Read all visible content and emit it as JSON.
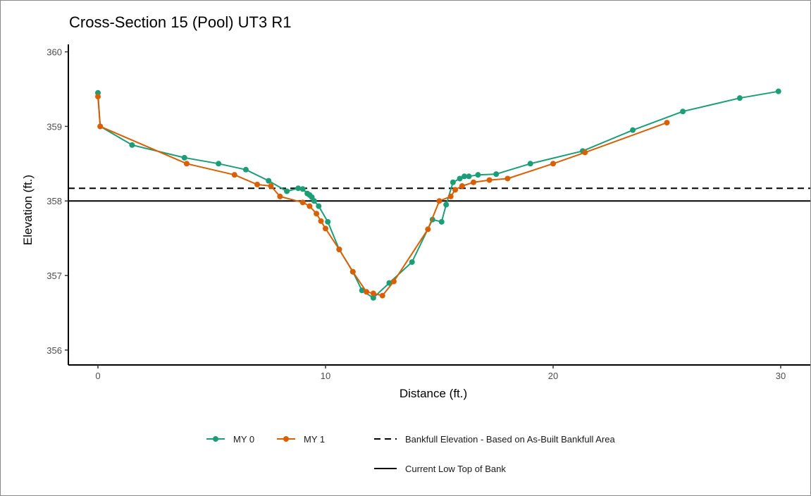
{
  "colors": {
    "my0": "#1b9e77",
    "my1": "#d95f02",
    "bankfull": "#000000",
    "low_top_of_bank": "#000000"
  },
  "chart_data": {
    "type": "line",
    "title": "Cross-Section 15 (Pool) UT3 R1",
    "xlabel": "Distance (ft.)",
    "ylabel": "Elevation (ft.)",
    "xlim": [
      -1.3,
      31.3
    ],
    "ylim": [
      355.8,
      360.1
    ],
    "x_ticks": [
      0,
      10,
      20,
      30
    ],
    "y_ticks": [
      356,
      357,
      358,
      359,
      360
    ],
    "grid": false,
    "legend_position": "bottom",
    "series": [
      {
        "name": "MY 0",
        "color": "#1b9e77",
        "x": [
          0,
          0.1,
          1.5,
          3.8,
          5.3,
          6.5,
          7.5,
          8.3,
          8.8,
          9.0,
          9.2,
          9.3,
          9.4,
          9.5,
          9.7,
          10.1,
          10.6,
          11.2,
          11.6,
          12.1,
          12.8,
          13.8,
          14.7,
          15.1,
          15.3,
          15.6,
          15.9,
          16.1,
          16.3,
          16.7,
          17.5,
          19.0,
          21.3,
          23.5,
          25.7,
          28.2,
          29.9
        ],
        "y": [
          359.45,
          359.0,
          358.75,
          358.58,
          358.5,
          358.42,
          358.27,
          358.13,
          358.17,
          358.16,
          358.1,
          358.08,
          358.05,
          358.0,
          357.93,
          357.72,
          357.35,
          357.05,
          356.8,
          356.7,
          356.9,
          357.18,
          357.75,
          357.72,
          357.95,
          358.25,
          358.3,
          358.33,
          358.33,
          358.35,
          358.36,
          358.5,
          358.67,
          358.95,
          359.2,
          359.38,
          359.47
        ]
      },
      {
        "name": "MY 1",
        "color": "#d95f02",
        "x": [
          0,
          0.1,
          3.9,
          6.0,
          7.0,
          7.6,
          8.0,
          9.0,
          9.3,
          9.6,
          9.8,
          10.0,
          10.6,
          11.2,
          11.8,
          12.1,
          12.5,
          13.0,
          14.5,
          15.0,
          15.5,
          15.7,
          16.0,
          16.5,
          17.2,
          18.0,
          20.0,
          21.4,
          25.0
        ],
        "y": [
          359.4,
          359.0,
          358.5,
          358.35,
          358.22,
          358.2,
          358.06,
          357.98,
          357.93,
          357.83,
          357.73,
          357.63,
          357.35,
          357.05,
          356.78,
          356.76,
          356.73,
          356.92,
          357.62,
          358.0,
          358.06,
          358.15,
          358.2,
          358.25,
          358.28,
          358.3,
          358.5,
          358.65,
          359.05
        ]
      }
    ],
    "reference_lines": [
      {
        "name": "Bankfull Elevation - Based on As-Built Bankfull Area",
        "y": 358.17,
        "style": "dashed",
        "color": "#000000"
      },
      {
        "name": "Current Low Top of Bank",
        "y": 358.0,
        "style": "solid",
        "color": "#000000"
      }
    ]
  }
}
